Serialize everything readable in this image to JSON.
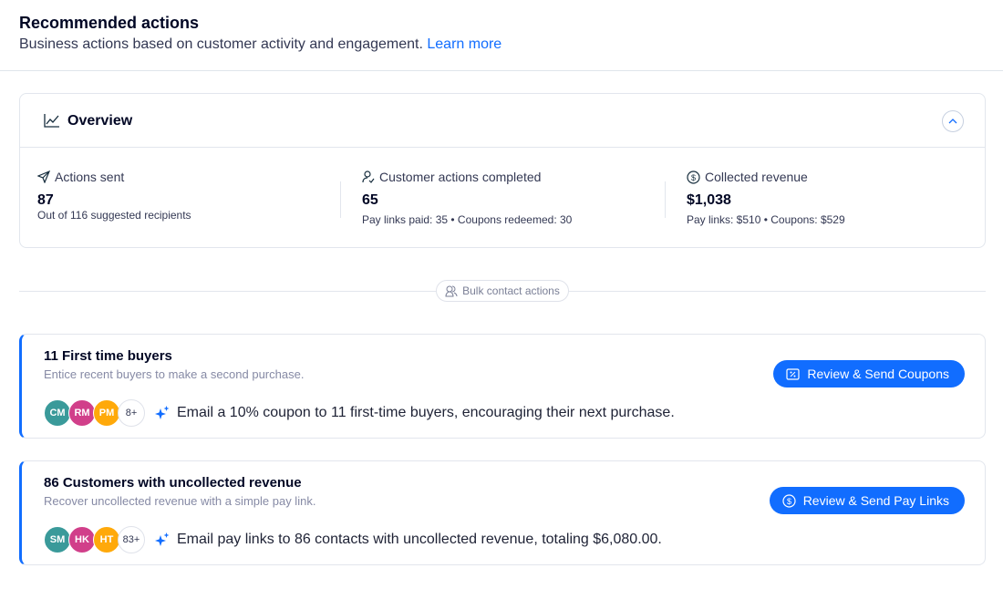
{
  "header": {
    "title": "Recommended actions",
    "subtitle": "Business actions based on customer activity and engagement.",
    "learn_more": "Learn more"
  },
  "overview": {
    "title": "Overview",
    "stats": [
      {
        "label": "Actions sent",
        "value": "87",
        "sub": "Out of 116 suggested recipients",
        "icon": "send-icon"
      },
      {
        "label": "Customer actions completed",
        "value": "65",
        "sub": "Pay links paid: 35 • Coupons redeemed: 30",
        "icon": "user-check-icon"
      },
      {
        "label": "Collected revenue",
        "value": "$1,038",
        "sub": "Pay links: $510 • Coupons: $529",
        "icon": "dollar-icon"
      }
    ]
  },
  "bulk_label": "Bulk contact actions",
  "cards": [
    {
      "title": "11 First time buyers",
      "desc": "Entice recent buyers to make a second purchase.",
      "avatars": [
        {
          "i": "CM",
          "c": "#3a9a9a"
        },
        {
          "i": "RM",
          "c": "#d13f8a"
        },
        {
          "i": "PM",
          "c": "#ffa90a"
        }
      ],
      "more": "8+",
      "suggestion": "Email a 10% coupon to 11 first-time buyers, encouraging their next purchase.",
      "button": "Review & Send Coupons"
    },
    {
      "title": "86 Customers with uncollected revenue",
      "desc": "Recover uncollected revenue with a simple pay link.",
      "avatars": [
        {
          "i": "SM",
          "c": "#3a9a9a"
        },
        {
          "i": "HK",
          "c": "#d13f8a"
        },
        {
          "i": "HT",
          "c": "#ffa90a"
        }
      ],
      "more": "83+",
      "suggestion": "Email pay links to 86 contacts with uncollected revenue, totaling $6,080.00.",
      "button": "Review & Send Pay Links"
    }
  ],
  "colors": {
    "accent": "#116dff"
  }
}
